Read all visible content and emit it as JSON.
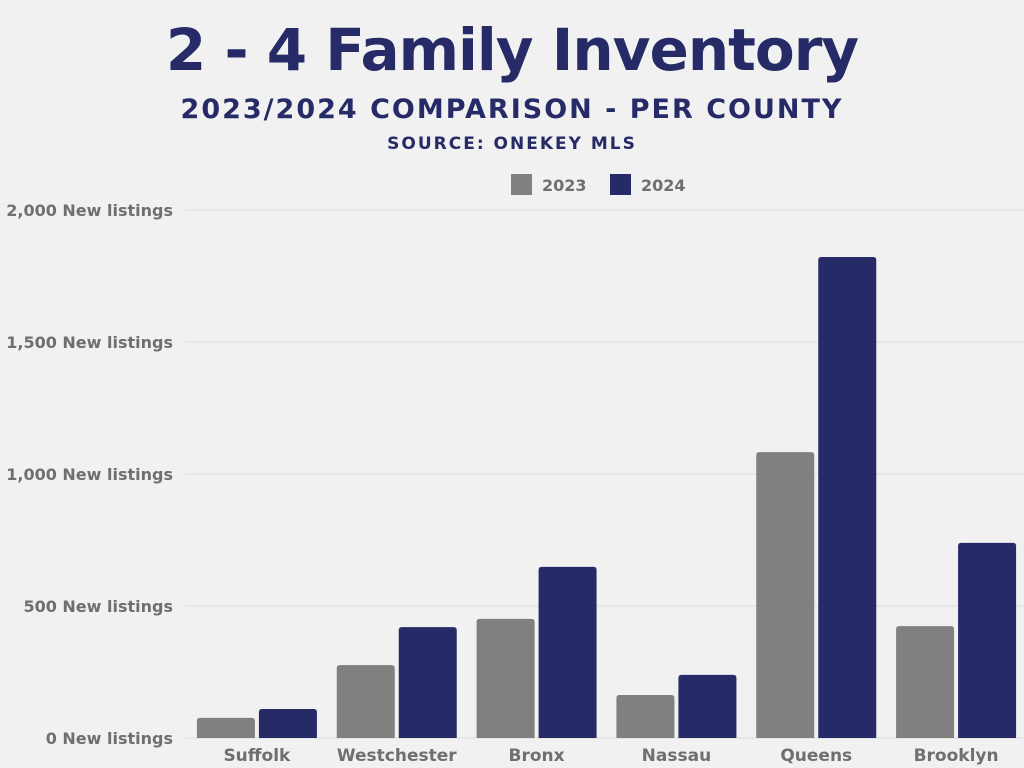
{
  "chart_data": {
    "type": "bar",
    "title": "2 - 4 Family Inventory",
    "subtitle": "2023/2024 COMPARISON - PER COUNTY",
    "source": "SOURCE: ONEKEY MLS",
    "categories": [
      "Suffolk",
      "Westchester",
      "Bronx",
      "Nassau",
      "Queens",
      "Brooklyn"
    ],
    "series": [
      {
        "name": "2023",
        "color": "#808080",
        "values": [
          76,
          276,
          451,
          163,
          1083,
          424
        ]
      },
      {
        "name": "2024",
        "color": "#262a66",
        "values": [
          110,
          420,
          648,
          239,
          1822,
          739
        ]
      }
    ],
    "ylim": [
      0,
      2000
    ],
    "yticks": [
      0,
      500,
      1000,
      1500,
      2000
    ],
    "ytick_labels": [
      "0 New listings",
      "500 New listings",
      "1,000 New listings",
      "1,500 New listings",
      "2,000 New listings"
    ],
    "grid": true,
    "legend": "top-center"
  }
}
